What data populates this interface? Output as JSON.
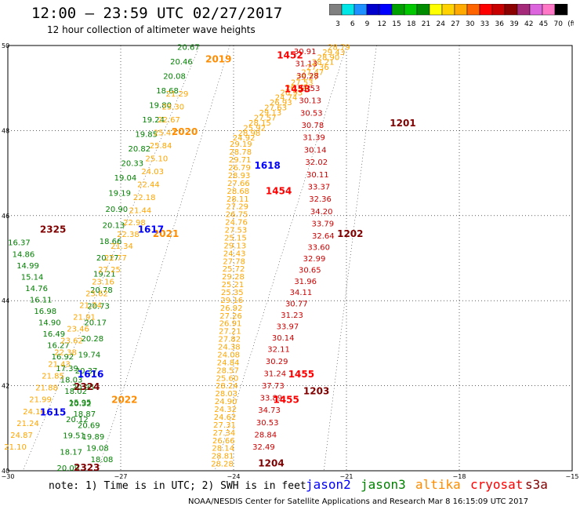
{
  "header": {
    "title": "12:00 – 23:59 UTC 02/27/2017",
    "subtitle": "12 hour collection of altimeter wave heights"
  },
  "color_scale": {
    "colors": [
      "#808080",
      "#00e6e6",
      "#1e90ff",
      "#0000cd",
      "#0000ff",
      "#00a000",
      "#00c800",
      "#008c00",
      "#ffff00",
      "#ffd200",
      "#ffaa00",
      "#ff6400",
      "#ff0000",
      "#c80000",
      "#8b0000",
      "#a52a7a",
      "#dc64dc",
      "#ff78c8",
      "#000000"
    ],
    "labels": [
      "3",
      "6",
      "9",
      "12",
      "15",
      "18",
      "21",
      "24",
      "27",
      "30",
      "33",
      "36",
      "39",
      "42",
      "45",
      "70",
      "(ft)"
    ]
  },
  "map": {
    "lon_ticks": [
      "−30",
      "−27",
      "−24",
      "−21",
      "−18",
      "−15"
    ],
    "lat_ticks": [
      "50",
      "48",
      "46",
      "44",
      "42",
      "40"
    ],
    "lon_range": [
      -30,
      -15
    ],
    "lat_range": [
      40,
      50
    ]
  },
  "tracks": [
    {
      "sat": "jason3",
      "color": "#008000",
      "points": [
        {
          "t": "20.67"
        },
        {
          "t": "20.46"
        },
        {
          "t": "20.08"
        },
        {
          "t": "18.68"
        },
        {
          "t": "19.80"
        },
        {
          "t": "19.24"
        },
        {
          "t": "19.85"
        },
        {
          "t": "20.82"
        },
        {
          "t": "20.33"
        },
        {
          "t": "19.04"
        },
        {
          "t": "19.19"
        },
        {
          "t": "20.90"
        },
        {
          "t": "20.13"
        },
        {
          "t": "18.66"
        },
        {
          "t": "20.17"
        },
        {
          "t": "19.21"
        },
        {
          "t": "20.78"
        },
        {
          "t": "20.73"
        },
        {
          "t": "20.17"
        },
        {
          "t": "20.28"
        },
        {
          "t": "19.74"
        },
        {
          "t": "20.37"
        },
        {
          "t": "20.95"
        },
        {
          "t": "20.32"
        },
        {
          "t": "20.12"
        },
        {
          "t": "19.51"
        },
        {
          "t": "18.17"
        },
        {
          "t": "20.09"
        }
      ]
    },
    {
      "sat": "jason3-west",
      "color": "#008000",
      "points": [
        {
          "t": "16.37"
        },
        {
          "t": "14.86"
        },
        {
          "t": "14.99"
        },
        {
          "t": "15.14"
        },
        {
          "t": "14.76"
        },
        {
          "t": "16.11"
        },
        {
          "t": "16.98"
        },
        {
          "t": "14.90"
        },
        {
          "t": "16.49"
        },
        {
          "t": "16.27"
        },
        {
          "t": "16.92"
        },
        {
          "t": "17.39"
        },
        {
          "t": "18.03"
        },
        {
          "t": "18.02"
        },
        {
          "t": "15.95"
        },
        {
          "t": "18.87"
        },
        {
          "t": "20.69"
        },
        {
          "t": "19.89"
        },
        {
          "t": "19.08"
        },
        {
          "t": "18.08"
        }
      ]
    },
    {
      "sat": "altika",
      "color": "#ffa500",
      "points": [
        {
          "t": "21.29"
        },
        {
          "t": "23.30"
        },
        {
          "t": "22.67"
        },
        {
          "t": "25.47"
        },
        {
          "t": "25.84"
        },
        {
          "t": "25.10"
        },
        {
          "t": "24.03"
        },
        {
          "t": "22.44"
        },
        {
          "t": "22.18"
        },
        {
          "t": "21.44"
        },
        {
          "t": "22.98"
        },
        {
          "t": "22.38"
        },
        {
          "t": "21.34"
        },
        {
          "t": "22.77"
        },
        {
          "t": "27.25"
        },
        {
          "t": "23.16"
        },
        {
          "t": "23.62"
        },
        {
          "t": "21.74"
        },
        {
          "t": "21.91"
        },
        {
          "t": "23.46"
        },
        {
          "t": "23.62"
        },
        {
          "t": "22.38"
        },
        {
          "t": "21.43"
        },
        {
          "t": "21.85"
        },
        {
          "t": "21.88"
        },
        {
          "t": "21.99"
        },
        {
          "t": "24.16"
        },
        {
          "t": "21.24"
        },
        {
          "t": "24.87"
        },
        {
          "t": "21.10"
        }
      ]
    },
    {
      "sat": "altika-east",
      "color": "#ffa500",
      "points": [
        {
          "t": "28.79"
        },
        {
          "t": "29.43"
        },
        {
          "t": "28.90"
        },
        {
          "t": "28.21"
        },
        {
          "t": "27.36"
        },
        {
          "t": "27.47"
        },
        {
          "t": "25.27"
        },
        {
          "t": "27.53"
        },
        {
          "t": "26.44"
        },
        {
          "t": "26.93"
        },
        {
          "t": "24.74"
        },
        {
          "t": "26.93"
        },
        {
          "t": "27.63"
        },
        {
          "t": "29.13"
        },
        {
          "t": "27.57"
        },
        {
          "t": "28.15"
        },
        {
          "t": "25.92"
        },
        {
          "t": "28.98"
        },
        {
          "t": "24.92"
        },
        {
          "t": "29.19"
        },
        {
          "t": "28.78"
        },
        {
          "t": "29.71"
        },
        {
          "t": "26.79"
        },
        {
          "t": "28.93"
        },
        {
          "t": "27.66"
        },
        {
          "t": "28.68"
        },
        {
          "t": "28.11"
        },
        {
          "t": "27.29"
        },
        {
          "t": "26.75"
        },
        {
          "t": "24.76"
        },
        {
          "t": "27.53"
        },
        {
          "t": "25.15"
        },
        {
          "t": "29.13"
        },
        {
          "t": "24.43"
        },
        {
          "t": "27.78"
        },
        {
          "t": "25.72"
        },
        {
          "t": "29.28"
        },
        {
          "t": "25.21"
        },
        {
          "t": "25.35"
        },
        {
          "t": "29.16"
        },
        {
          "t": "26.92"
        },
        {
          "t": "27.26"
        },
        {
          "t": "26.91"
        },
        {
          "t": "27.21"
        },
        {
          "t": "27.82"
        },
        {
          "t": "24.38"
        },
        {
          "t": "24.08"
        },
        {
          "t": "24.84"
        },
        {
          "t": "28.57"
        },
        {
          "t": "25.60"
        },
        {
          "t": "28.24"
        },
        {
          "t": "28.03"
        },
        {
          "t": "24.90"
        },
        {
          "t": "24.32"
        },
        {
          "t": "24.62"
        },
        {
          "t": "27.31"
        },
        {
          "t": "27.34"
        },
        {
          "t": "26.66"
        },
        {
          "t": "28.14"
        },
        {
          "t": "28.81"
        },
        {
          "t": "28.28"
        }
      ]
    },
    {
      "sat": "cryosat",
      "color": "#cc0000",
      "points": [
        {
          "t": "30.91"
        },
        {
          "t": "31.13"
        },
        {
          "t": "30.28"
        },
        {
          "t": "31.53"
        },
        {
          "t": "30.13"
        },
        {
          "t": "30.53"
        },
        {
          "t": "30.78"
        },
        {
          "t": "31.39"
        },
        {
          "t": "30.14"
        },
        {
          "t": "32.02"
        },
        {
          "t": "30.11"
        },
        {
          "t": "33.37"
        },
        {
          "t": "32.36"
        },
        {
          "t": "34.20"
        },
        {
          "t": "33.79"
        },
        {
          "t": "32.64"
        },
        {
          "t": "33.60"
        },
        {
          "t": "32.99"
        },
        {
          "t": "30.65"
        },
        {
          "t": "31.96"
        },
        {
          "t": "34.11"
        },
        {
          "t": "30.77"
        },
        {
          "t": "31.23"
        },
        {
          "t": "33.97"
        },
        {
          "t": "30.14"
        },
        {
          "t": "32.11"
        },
        {
          "t": "30.29"
        },
        {
          "t": "31.24"
        },
        {
          "t": "37.73"
        },
        {
          "t": "33.89"
        },
        {
          "t": "34.73"
        },
        {
          "t": "30.53"
        },
        {
          "t": "28.84"
        },
        {
          "t": "32.49"
        }
      ]
    }
  ],
  "pass_labels": [
    {
      "t": "2019",
      "color": "#ff8c00"
    },
    {
      "t": "2020",
      "color": "#ff8c00"
    },
    {
      "t": "2021",
      "color": "#ff8c00"
    },
    {
      "t": "2022",
      "color": "#ff8c00"
    },
    {
      "t": "1616",
      "color": "#0000ff"
    },
    {
      "t": "1617",
      "color": "#0000ff"
    },
    {
      "t": "1618",
      "color": "#0000ff"
    },
    {
      "t": "1615",
      "color": "#0000ff"
    },
    {
      "t": "2325",
      "color": "#800000"
    },
    {
      "t": "2324",
      "color": "#800000"
    },
    {
      "t": "2323",
      "color": "#800000"
    },
    {
      "t": "1452",
      "color": "#ff0000"
    },
    {
      "t": "1453",
      "color": "#ff0000"
    },
    {
      "t": "1454",
      "color": "#ff0000"
    },
    {
      "t": "1455",
      "color": "#ff0000"
    },
    {
      "t": "1455",
      "color": "#ff0000"
    },
    {
      "t": "1201",
      "color": "#800000"
    },
    {
      "t": "1202",
      "color": "#800000"
    },
    {
      "t": "1203",
      "color": "#800000"
    },
    {
      "t": "1204",
      "color": "#800000"
    }
  ],
  "notes": {
    "note": "note: 1) Time is in UTC; 2) SWH is in feet",
    "sat_names": [
      {
        "t": "jason2",
        "color": "#0000ff"
      },
      {
        "t": "jason3",
        "color": "#008000"
      },
      {
        "t": "altika",
        "color": "#ff8c00"
      },
      {
        "t": "cryosat",
        "color": "#ff0000"
      },
      {
        "t": "s3a",
        "color": "#800000"
      }
    ],
    "footer": "NOAA/NESDIS Center for Satellite Applications and Research   Mar  8 16:15:09 UTC 2017"
  }
}
